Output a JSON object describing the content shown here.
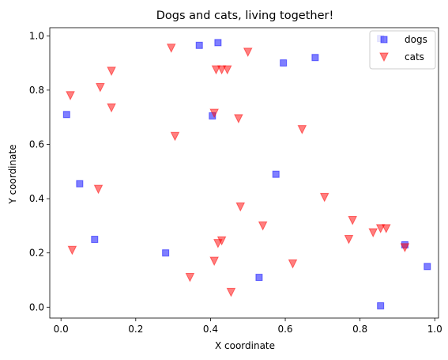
{
  "chart_data": {
    "type": "scatter",
    "title": "Dogs and cats, living together!",
    "xlabel": "X coordinate",
    "ylabel": "Y coordinate",
    "xlim": [
      -0.03,
      1.01
    ],
    "ylim": [
      -0.04,
      1.03
    ],
    "xticks": [
      0.0,
      0.2,
      0.4,
      0.6,
      0.8,
      1.0
    ],
    "xtick_labels": [
      "0.0",
      "0.2",
      "0.4",
      "0.6",
      "0.8",
      "1.0"
    ],
    "yticks": [
      0.0,
      0.2,
      0.4,
      0.6,
      0.8,
      1.0
    ],
    "ytick_labels": [
      "0.0",
      "0.2",
      "0.4",
      "0.6",
      "0.8",
      "1.0"
    ],
    "grid": false,
    "legend_position": "top-right",
    "series": [
      {
        "name": "dogs",
        "marker": "square",
        "color": "#0000ff",
        "alpha": 0.5,
        "points": [
          {
            "x": 0.015,
            "y": 0.71
          },
          {
            "x": 0.05,
            "y": 0.455
          },
          {
            "x": 0.09,
            "y": 0.25
          },
          {
            "x": 0.28,
            "y": 0.2
          },
          {
            "x": 0.37,
            "y": 0.965
          },
          {
            "x": 0.405,
            "y": 0.705
          },
          {
            "x": 0.42,
            "y": 0.975
          },
          {
            "x": 0.53,
            "y": 0.11
          },
          {
            "x": 0.575,
            "y": 0.49
          },
          {
            "x": 0.595,
            "y": 0.9
          },
          {
            "x": 0.68,
            "y": 0.92
          },
          {
            "x": 0.855,
            "y": 0.99
          },
          {
            "x": 0.855,
            "y": 0.005
          },
          {
            "x": 0.92,
            "y": 0.23
          },
          {
            "x": 0.98,
            "y": 0.15
          }
        ]
      },
      {
        "name": "cats",
        "marker": "triangle-down",
        "color": "#ff0000",
        "alpha": 0.5,
        "points": [
          {
            "x": 0.025,
            "y": 0.78
          },
          {
            "x": 0.03,
            "y": 0.21
          },
          {
            "x": 0.1,
            "y": 0.435
          },
          {
            "x": 0.105,
            "y": 0.81
          },
          {
            "x": 0.135,
            "y": 0.87
          },
          {
            "x": 0.135,
            "y": 0.735
          },
          {
            "x": 0.295,
            "y": 0.955
          },
          {
            "x": 0.305,
            "y": 0.63
          },
          {
            "x": 0.345,
            "y": 0.11
          },
          {
            "x": 0.41,
            "y": 0.715
          },
          {
            "x": 0.41,
            "y": 0.17
          },
          {
            "x": 0.415,
            "y": 0.875
          },
          {
            "x": 0.42,
            "y": 0.235
          },
          {
            "x": 0.43,
            "y": 0.875
          },
          {
            "x": 0.43,
            "y": 0.245
          },
          {
            "x": 0.445,
            "y": 0.875
          },
          {
            "x": 0.455,
            "y": 0.055
          },
          {
            "x": 0.475,
            "y": 0.695
          },
          {
            "x": 0.48,
            "y": 0.37
          },
          {
            "x": 0.5,
            "y": 0.94
          },
          {
            "x": 0.54,
            "y": 0.3
          },
          {
            "x": 0.62,
            "y": 0.16
          },
          {
            "x": 0.645,
            "y": 0.655
          },
          {
            "x": 0.705,
            "y": 0.405
          },
          {
            "x": 0.77,
            "y": 0.25
          },
          {
            "x": 0.78,
            "y": 0.32
          },
          {
            "x": 0.835,
            "y": 0.275
          },
          {
            "x": 0.855,
            "y": 0.29
          },
          {
            "x": 0.87,
            "y": 0.29
          },
          {
            "x": 0.92,
            "y": 0.22
          }
        ]
      }
    ]
  }
}
